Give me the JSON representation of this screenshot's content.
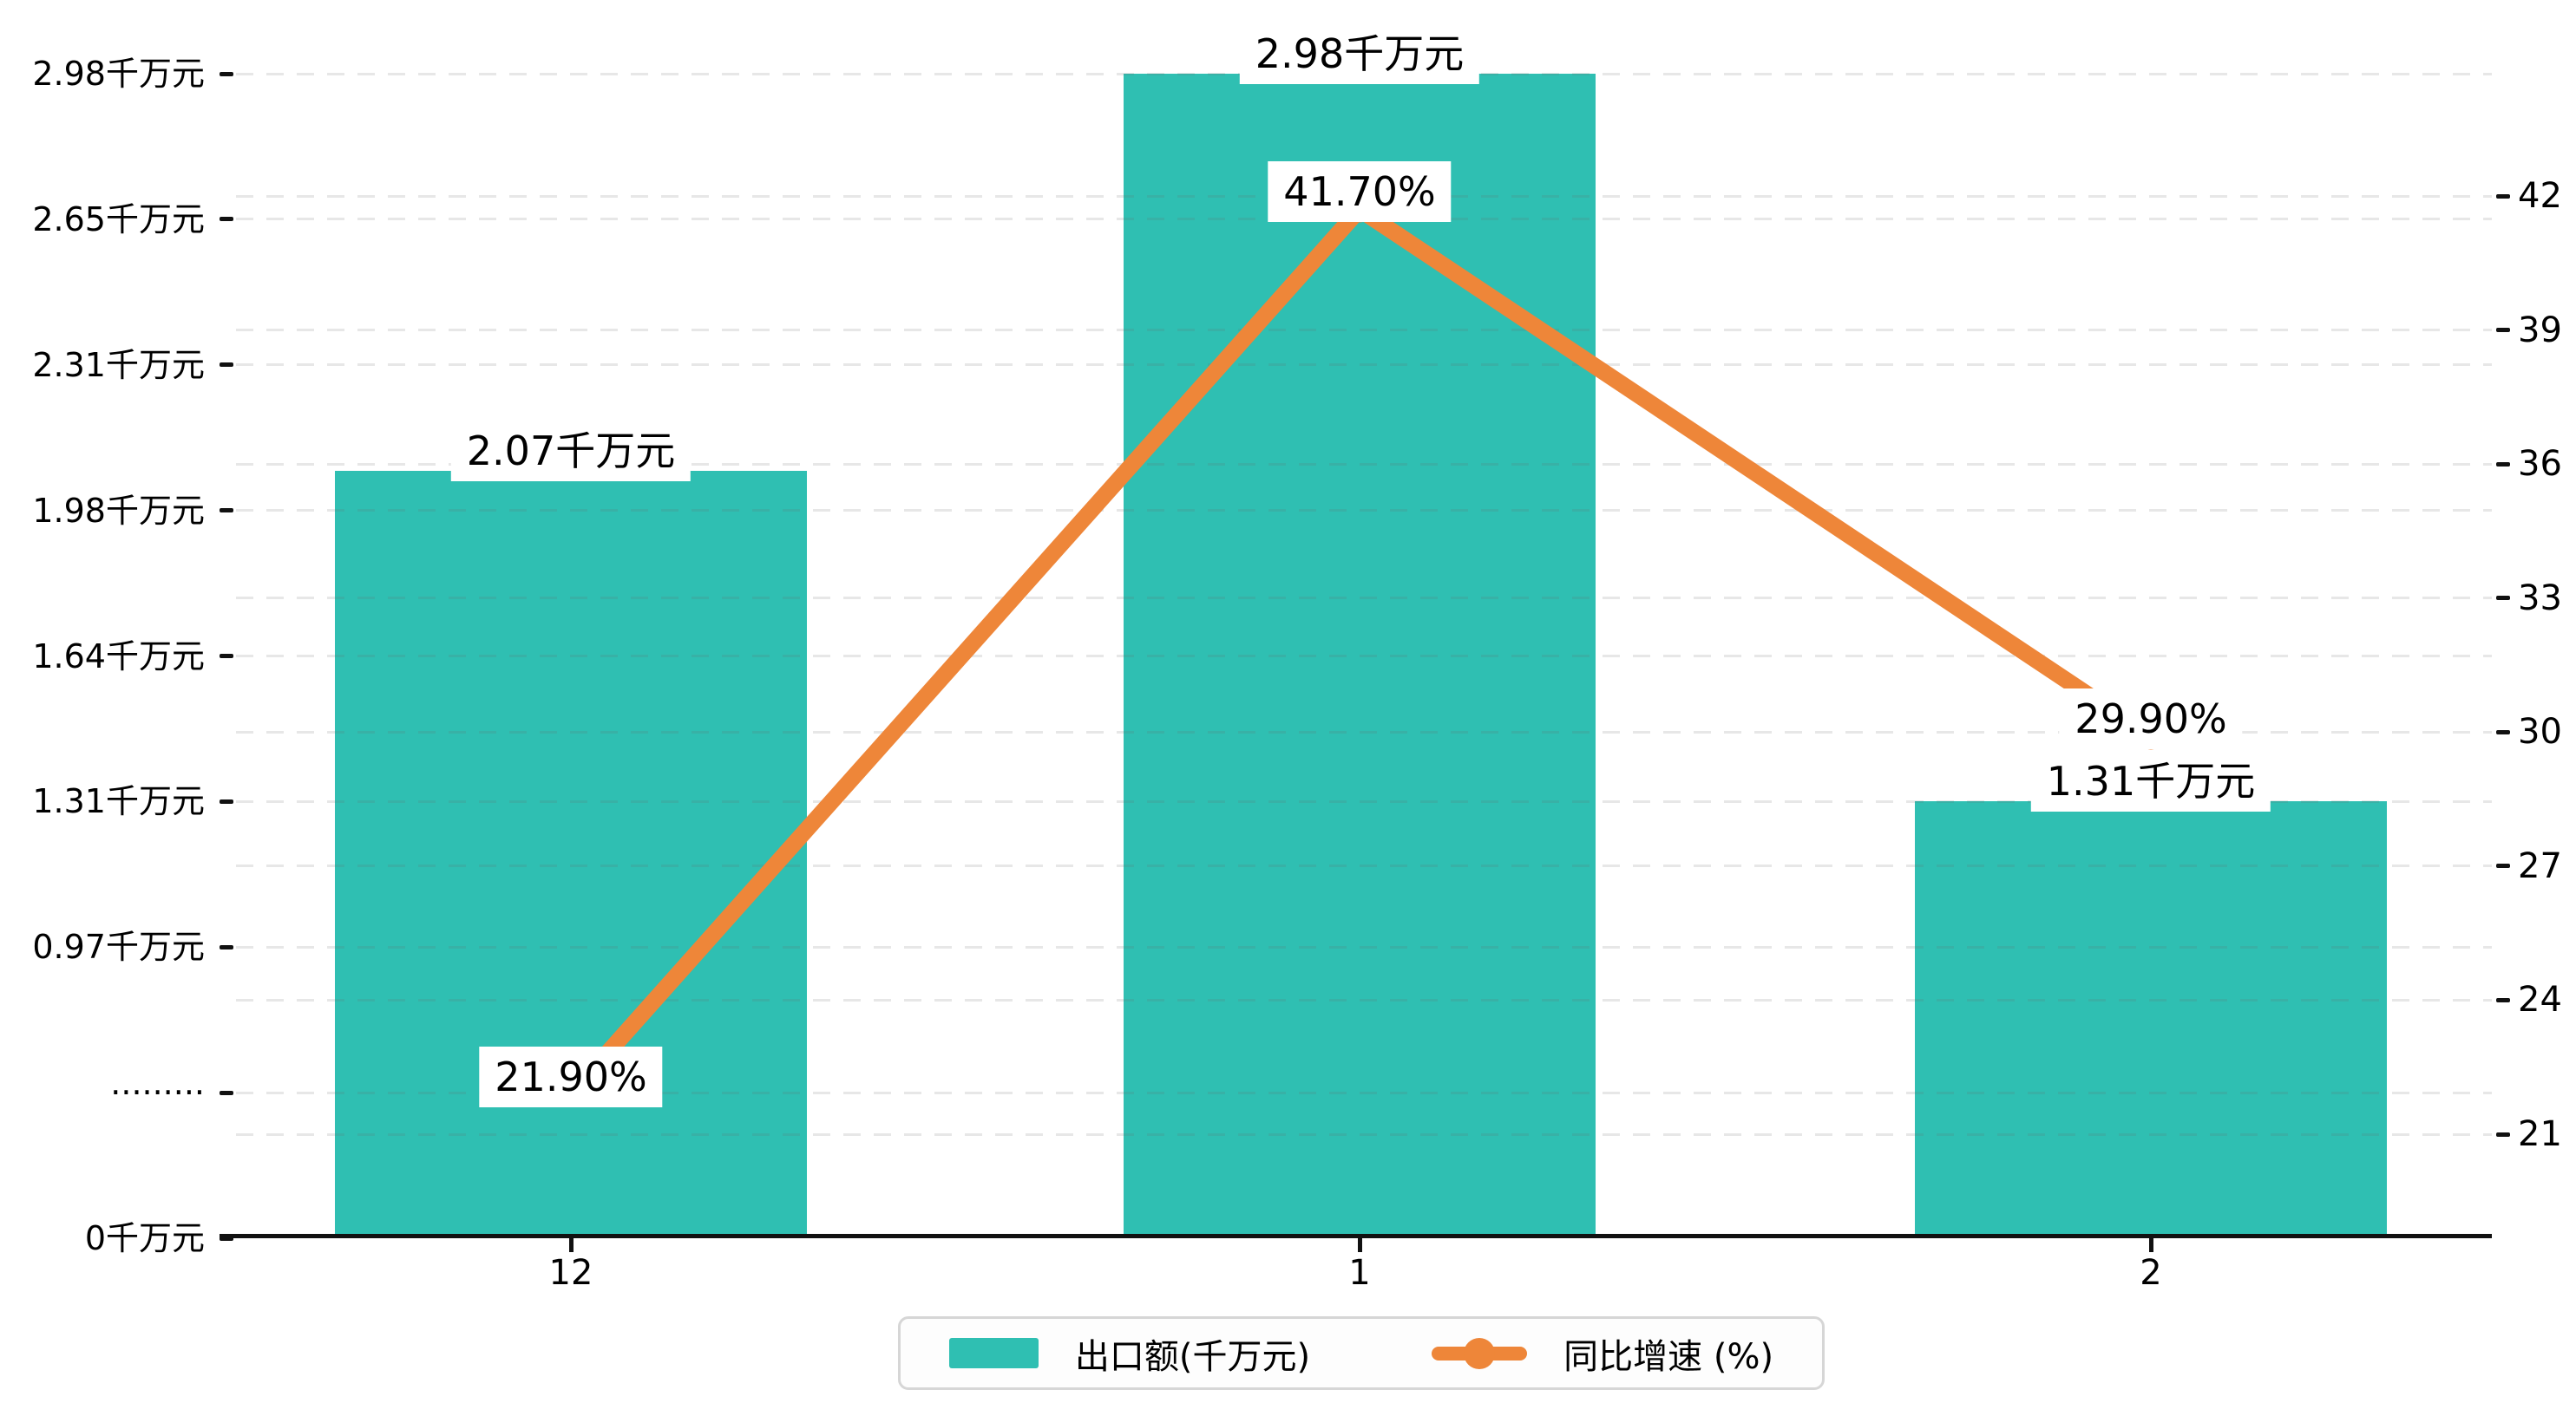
{
  "chart_data": {
    "type": "combo-bar-line",
    "categories": [
      "12",
      "1",
      "2"
    ],
    "series": [
      {
        "name": "出口额(千万元)",
        "type": "bar",
        "axis": "left",
        "unit": "千万元",
        "values": [
          2.07,
          2.98,
          1.31
        ],
        "data_labels": [
          "2.07千万元",
          "2.98千万元",
          "1.31千万元"
        ],
        "color": "#2fbfb2"
      },
      {
        "name": "同比增速 (%)",
        "type": "line",
        "axis": "right",
        "unit": "%",
        "values": [
          21.9,
          41.7,
          29.9
        ],
        "data_labels": [
          "21.90%",
          "41.70%",
          "29.90%"
        ],
        "color": "#ee8639"
      }
    ],
    "left_axis": {
      "tick_labels": [
        "2.98千万元",
        "2.65千万元",
        "2.31千万元",
        "1.98千万元",
        "1.64千万元",
        "1.31千万元",
        "0.97千万元",
        "·········",
        "0千万元"
      ],
      "tick_values": [
        2.98,
        2.65,
        2.31,
        1.98,
        1.64,
        1.31,
        0.97,
        null,
        0
      ],
      "range": [
        0,
        2.98
      ]
    },
    "right_axis": {
      "tick_labels": [
        "42",
        "39",
        "36",
        "33",
        "30",
        "27",
        "24",
        "21"
      ],
      "tick_values": [
        42,
        39,
        36,
        33,
        30,
        27,
        24,
        21
      ],
      "range": [
        21,
        42
      ]
    },
    "x_axis": {
      "tick_labels": [
        "12",
        "1",
        "2"
      ]
    },
    "grid": true,
    "legend_position": "bottom"
  },
  "legend": {
    "items": [
      {
        "label": "出口额(千万元)",
        "marker": "bar-swatch",
        "color": "#2fbfb2"
      },
      {
        "label": "同比增速 (%)",
        "marker": "line-dot",
        "color": "#ee8639"
      }
    ]
  },
  "colors": {
    "bar": "#2fbfb2",
    "line": "#ee8639",
    "background": "#ffffff",
    "text": "#000000",
    "grid": "#e6e6e6",
    "axis_line": "#111111",
    "label_bg": "#ffffff",
    "legend_border": "#d6d6d6",
    "legend_bg": "#fdfdfd"
  }
}
